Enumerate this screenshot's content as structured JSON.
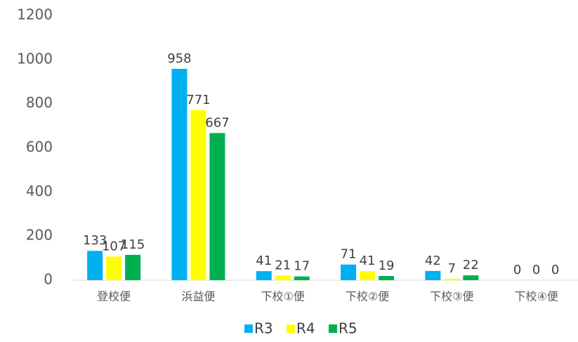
{
  "chart_data": {
    "type": "bar",
    "categories": [
      "登校便",
      "浜益便",
      "下校①便",
      "下校②便",
      "下校③便",
      "下校④便"
    ],
    "series": [
      {
        "name": "R3",
        "color": "#00b0f0",
        "values": [
          133,
          958,
          41,
          71,
          42,
          0
        ]
      },
      {
        "name": "R4",
        "color": "#ffff00",
        "values": [
          107,
          771,
          21,
          41,
          7,
          0
        ]
      },
      {
        "name": "R5",
        "color": "#00b050",
        "values": [
          115,
          667,
          17,
          19,
          22,
          0
        ]
      }
    ],
    "ylim": [
      0,
      1200
    ],
    "yticks": [
      0,
      200,
      400,
      600,
      800,
      1000,
      1200
    ],
    "grid": false,
    "legend": "bottom"
  }
}
